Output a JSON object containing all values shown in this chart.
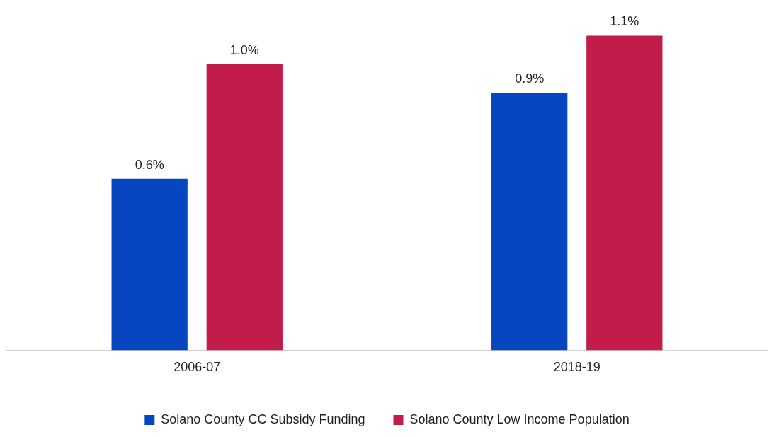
{
  "chart_data": {
    "type": "bar",
    "categories": [
      "2006-07",
      "2018-19"
    ],
    "series": [
      {
        "name": "Solano County CC Subsidy Funding",
        "color": "#0647c1",
        "values": [
          0.6,
          0.9
        ],
        "value_labels": [
          "0.6%",
          "0.9%"
        ]
      },
      {
        "name": "Solano County Low Income Population",
        "color": "#c21d4a",
        "values": [
          1.0,
          1.1
        ],
        "value_labels": [
          "1.0%",
          "1.1%"
        ]
      }
    ],
    "legend": "bottom",
    "grid": false,
    "tick_labels": "x"
  }
}
